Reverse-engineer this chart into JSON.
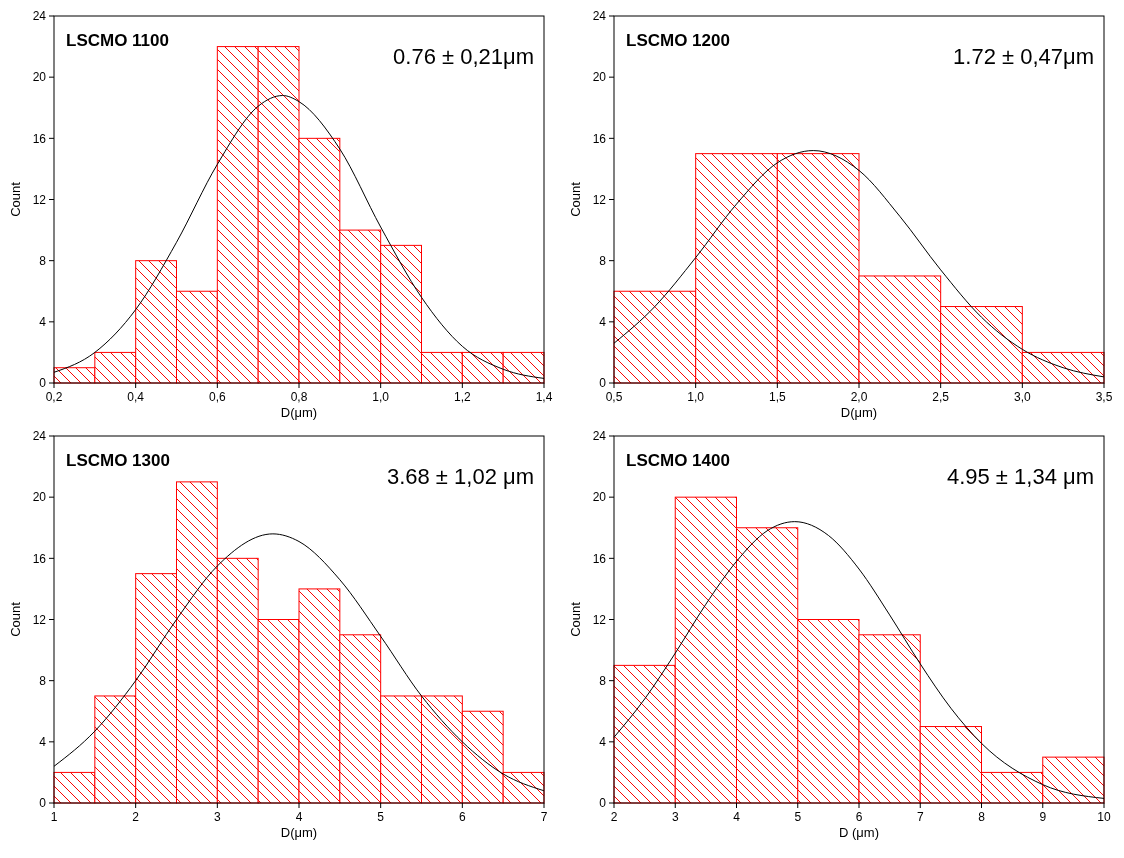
{
  "chart_data": [
    {
      "type": "histogram",
      "title": "LSCMO 1100",
      "annotations": [
        "0.76 ± 0,21μm"
      ],
      "xlabel": "D(μm)",
      "ylabel": "Count",
      "bins": [
        0.2,
        0.3,
        0.4,
        0.5,
        0.6,
        0.7,
        0.8,
        0.9,
        1.0,
        1.1,
        1.2,
        1.3,
        1.4
      ],
      "xlim": [
        0.2,
        1.4
      ],
      "xticks": [
        {
          "value": 0.2,
          "label": "0,2"
        },
        {
          "value": 0.4,
          "label": "0,4"
        },
        {
          "value": 0.6,
          "label": "0,6"
        },
        {
          "value": 0.8,
          "label": "0,8"
        },
        {
          "value": 1.0,
          "label": "1,0"
        },
        {
          "value": 1.2,
          "label": "1,2"
        },
        {
          "value": 1.4,
          "label": "1,4"
        }
      ],
      "ylim": [
        0,
        24
      ],
      "yticks": [
        0,
        4,
        8,
        12,
        16,
        20,
        24
      ],
      "series": [
        {
          "color": "#ff0000",
          "values": [
            1,
            2,
            8,
            6,
            22,
            22,
            16,
            10,
            9,
            2,
            2,
            2
          ]
        },
        {
          "type": "line",
          "color": "#000000",
          "x": [
            0.2,
            0.3,
            0.4,
            0.5,
            0.6,
            0.7,
            0.76,
            0.8,
            0.9,
            1.0,
            1.1,
            1.2,
            1.3,
            1.4
          ],
          "values": [
            0.7,
            2.0,
            4.8,
            9.2,
            14.3,
            18.1,
            18.8,
            18.4,
            15.3,
            10.2,
            5.6,
            2.4,
            0.9,
            0.3
          ]
        }
      ]
    },
    {
      "type": "histogram",
      "title": "LSCMO 1200",
      "annotations": [
        "1.72 ± 0,47μm"
      ],
      "xlabel": "D(μm)",
      "ylabel": "Count",
      "bins": [
        0.5,
        1.0,
        1.5,
        2.0,
        2.5,
        3.0,
        3.5
      ],
      "xlim": [
        0.5,
        3.5
      ],
      "xticks": [
        {
          "value": 0.5,
          "label": "0,5"
        },
        {
          "value": 1.0,
          "label": "1,0"
        },
        {
          "value": 1.5,
          "label": "1,5"
        },
        {
          "value": 2.0,
          "label": "2,0"
        },
        {
          "value": 2.5,
          "label": "2,5"
        },
        {
          "value": 3.0,
          "label": "3,0"
        },
        {
          "value": 3.5,
          "label": "3,5"
        }
      ],
      "ylim": [
        0,
        24
      ],
      "yticks": [
        0,
        4,
        8,
        12,
        16,
        20,
        24
      ],
      "series": [
        {
          "color": "#ff0000",
          "values": [
            6,
            15,
            15,
            7,
            5,
            2
          ]
        },
        {
          "type": "line",
          "color": "#000000",
          "x": [
            0.5,
            0.75,
            1.0,
            1.25,
            1.5,
            1.72,
            2.0,
            2.25,
            2.5,
            2.75,
            3.0,
            3.25,
            3.5
          ],
          "values": [
            2.6,
            5.0,
            8.2,
            11.7,
            14.4,
            15.2,
            13.9,
            10.9,
            7.4,
            4.3,
            2.2,
            1.0,
            0.4
          ]
        }
      ]
    },
    {
      "type": "histogram",
      "title": "LSCMO 1300",
      "annotations": [
        "3.68 ± 1,02 μm"
      ],
      "xlabel": "D(μm)",
      "ylabel": "Count",
      "bins": [
        1,
        1.5,
        2,
        2.5,
        3,
        3.5,
        4,
        4.5,
        5,
        5.5,
        6,
        6.5,
        7
      ],
      "xlim": [
        1,
        7
      ],
      "xticks": [
        1,
        2,
        3,
        4,
        5,
        6,
        7
      ],
      "ylim": [
        0,
        24
      ],
      "yticks": [
        0,
        4,
        8,
        12,
        16,
        20,
        24
      ],
      "series": [
        {
          "color": "#ff0000",
          "values": [
            2,
            7,
            15,
            21,
            16,
            12,
            14,
            11,
            7,
            7,
            6,
            2
          ]
        },
        {
          "type": "line",
          "color": "#000000",
          "x": [
            1,
            1.5,
            2,
            2.5,
            3,
            3.68,
            4,
            4.5,
            5,
            5.5,
            6,
            6.5,
            7
          ],
          "values": [
            2.4,
            4.7,
            8.0,
            12.0,
            15.5,
            17.6,
            17.1,
            14.6,
            10.9,
            7.0,
            4.0,
            1.9,
            0.8
          ]
        }
      ]
    },
    {
      "type": "histogram",
      "title": "LSCMO 1400",
      "annotations": [
        "4.95 ± 1,34 μm"
      ],
      "xlabel": "D (μm)",
      "ylabel": "Count",
      "bins": [
        2,
        3,
        4,
        5,
        6,
        7,
        8,
        9,
        10
      ],
      "xlim": [
        2,
        10
      ],
      "xticks": [
        2,
        3,
        4,
        5,
        6,
        7,
        8,
        9,
        10
      ],
      "ylim": [
        0,
        24
      ],
      "yticks": [
        0,
        4,
        8,
        12,
        16,
        20,
        24
      ],
      "series": [
        {
          "color": "#ff0000",
          "values": [
            9,
            20,
            18,
            12,
            11,
            5,
            2,
            3
          ]
        },
        {
          "type": "line",
          "color": "#000000",
          "x": [
            2,
            2.5,
            3,
            3.5,
            4,
            4.5,
            4.95,
            5.5,
            6,
            6.5,
            7,
            7.5,
            8,
            9,
            10
          ],
          "values": [
            4.3,
            6.8,
            9.8,
            13.0,
            15.8,
            17.8,
            18.4,
            17.5,
            15.3,
            12.3,
            9.1,
            6.2,
            3.9,
            1.2,
            0.3
          ]
        }
      ]
    }
  ]
}
